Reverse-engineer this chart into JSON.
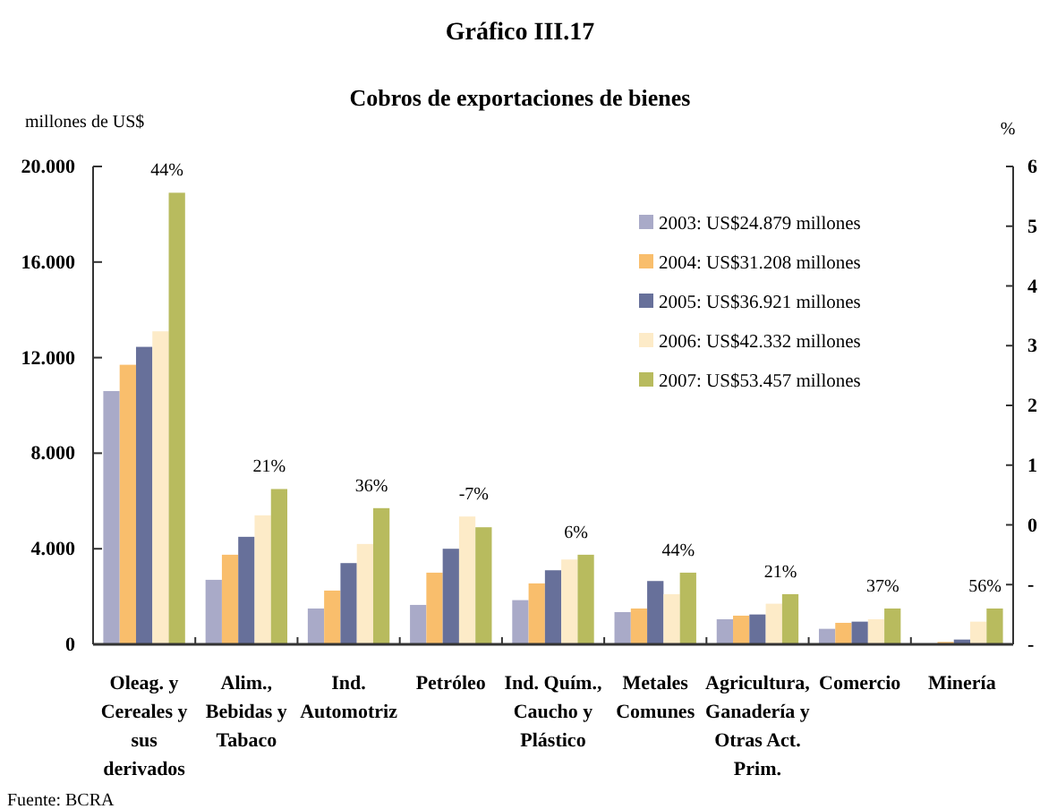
{
  "chart_data": {
    "type": "bar",
    "title": "Gráfico III.17",
    "subtitle": "Cobros de exportaciones de bienes",
    "ylabel": "millones de US$",
    "y2label": "%",
    "categories": [
      "Oleag. y Cereales y sus derivados",
      "Alim., Bebidas y Tabaco",
      "Ind. Automotriz",
      "Petróleo",
      "Ind. Quím., Caucho y Plástico",
      "Metales Comunes",
      "Agricultura, Ganadería y Otras Act. Prim.",
      "Comercio",
      "Minería"
    ],
    "series": [
      {
        "name": "2003: US$24.879 millones",
        "color": "#a9aac8",
        "values": [
          10600,
          2700,
          1500,
          1650,
          1850,
          1350,
          1050,
          650,
          0
        ]
      },
      {
        "name": "2004: US$31.208 millones",
        "color": "#f9be6c",
        "values": [
          11700,
          3750,
          2250,
          3000,
          2550,
          1500,
          1200,
          900,
          100
        ]
      },
      {
        "name": "2005: US$36.921 millones",
        "color": "#67709a",
        "values": [
          12450,
          4500,
          3400,
          4000,
          3100,
          2650,
          1250,
          950,
          200
        ]
      },
      {
        "name": "2006: US$42.332 millones",
        "color": "#fdebc8",
        "values": [
          13100,
          5400,
          4200,
          5350,
          3550,
          2100,
          1700,
          1050,
          950
        ]
      },
      {
        "name": "2007: US$53.457 millones",
        "color": "#b8bb5e",
        "values": [
          18900,
          6500,
          5700,
          4900,
          3750,
          3000,
          2100,
          1500,
          1500
        ]
      }
    ],
    "ylim": [
      0,
      20000
    ],
    "yticks": [
      {
        "value": 0,
        "label": "0"
      },
      {
        "value": 4000,
        "label": "4.000"
      },
      {
        "value": 8000,
        "label": "8.000"
      },
      {
        "value": 12000,
        "label": "12.000"
      },
      {
        "value": 16000,
        "label": "16.000"
      },
      {
        "value": 20000,
        "label": "20.000"
      }
    ],
    "y2lim": [
      -2,
      6
    ],
    "y2ticks": [
      {
        "value": -2,
        "label": "-"
      },
      {
        "value": -1,
        "label": "-"
      },
      0,
      1,
      2,
      3,
      4,
      5,
      6
    ],
    "grid": false,
    "legend": "top right",
    "annotations": [
      "44%",
      "21%",
      "36%",
      "-7%",
      "6%",
      "44%",
      "21%",
      "37%",
      "56%",
      "Fuente: BCRA"
    ]
  }
}
